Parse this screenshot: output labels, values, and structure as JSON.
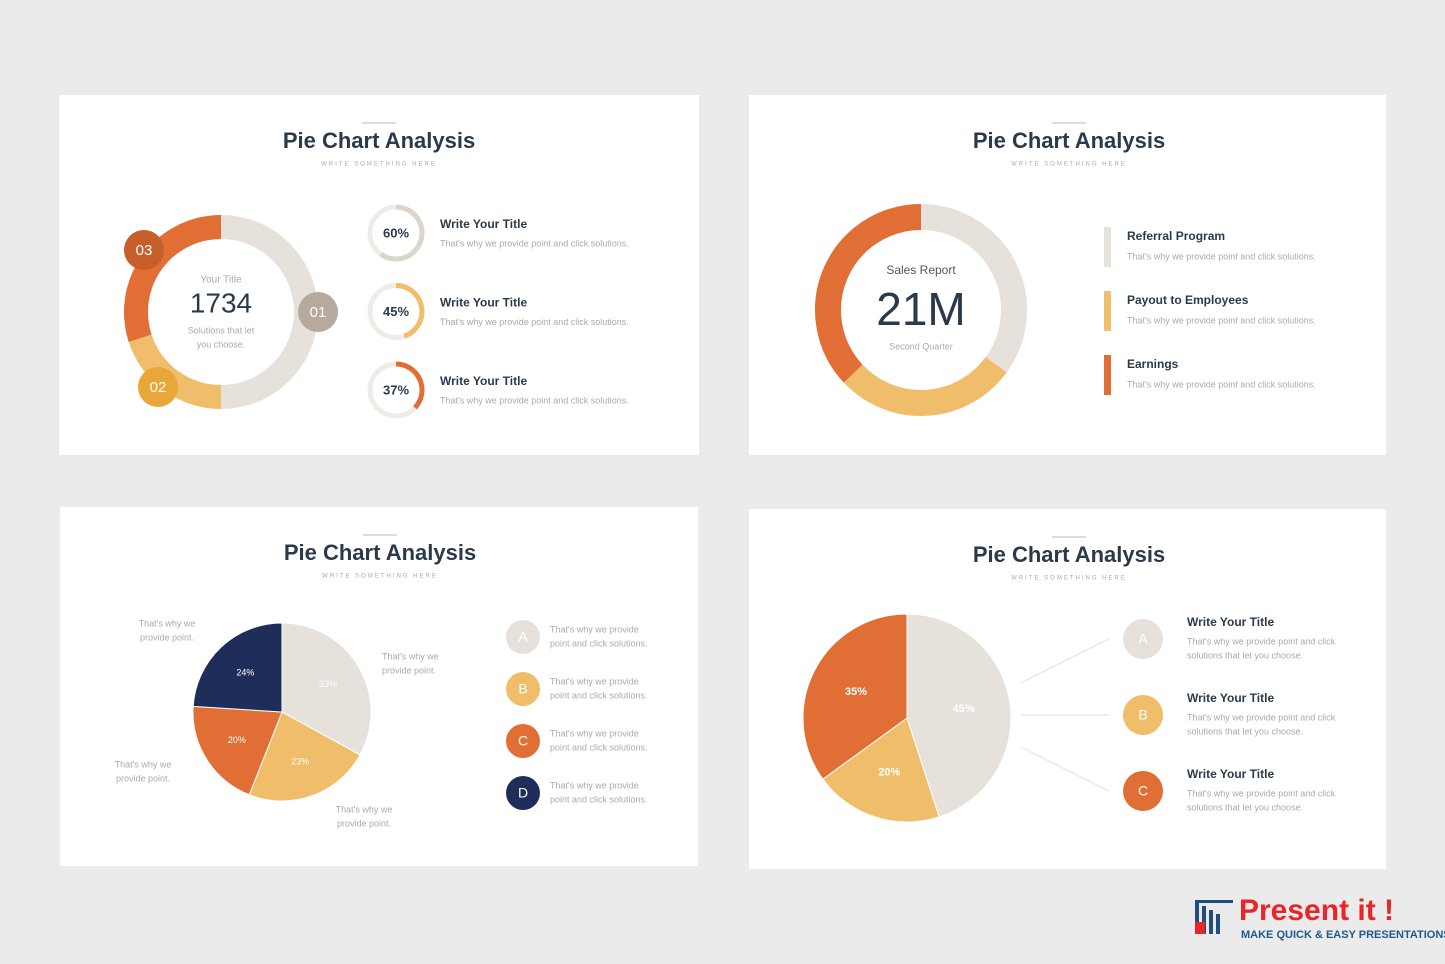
{
  "slides": [
    {
      "title": "Pie Chart Analysis",
      "subtitle": "WRITE SOMETHING HERE",
      "center": {
        "label": "Your Title",
        "value": 1734,
        "caption": [
          "Solutions that let",
          "you choose."
        ]
      },
      "segments": [
        {
          "badge": "01",
          "value": 50,
          "color": "#e6e1db"
        },
        {
          "badge": "02",
          "value": 20,
          "color": "#f0bd6a"
        },
        {
          "badge": "03",
          "value": 30,
          "color": "#e06e35"
        }
      ],
      "items": [
        {
          "value": 60,
          "value_label": "60%",
          "color": "#dcd5cb",
          "title": "Write Your Title",
          "text": "That's why we provide point and click solutions."
        },
        {
          "value": 45,
          "value_label": "45%",
          "color": "#f0bd6a",
          "title": "Write Your Title",
          "text": "That's why we provide point and click solutions."
        },
        {
          "value": 37,
          "value_label": "37%",
          "color": "#e06e35",
          "title": "Write Your Title",
          "text": "That's why we provide point and click solutions."
        }
      ]
    },
    {
      "title": "Pie Chart Analysis",
      "subtitle": "WRITE SOMETHING HERE",
      "center": {
        "label": "Sales Report",
        "value": "21M",
        "caption": "Second Quarter"
      },
      "segments": [
        {
          "name": "Referral Program",
          "value": 35,
          "color": "#e6e1db",
          "text": "That's why we provide point and click solutions."
        },
        {
          "name": "Payout to Employees",
          "value": 28,
          "color": "#f0bd6a",
          "text": "That's why we provide point and click solutions."
        },
        {
          "name": "Earnings",
          "value": 37,
          "color": "#e06e35",
          "text": "That's why we provide point and click solutions."
        }
      ]
    },
    {
      "title": "Pie Chart Analysis",
      "subtitle": "WRITE SOMETHING HERE",
      "segments": [
        {
          "value": 33,
          "label": "33%",
          "color": "#e6e1db",
          "letter": "A",
          "lines": [
            "That's why we provide",
            "point and click solutions."
          ]
        },
        {
          "value": 23,
          "label": "23%",
          "color": "#f0bd6a",
          "letter": "B",
          "lines": [
            "That's why we provide",
            "point and click solutions."
          ]
        },
        {
          "value": 20,
          "label": "20%",
          "color": "#e06e35",
          "letter": "C",
          "lines": [
            "That's why we provide",
            "point and click solutions."
          ]
        },
        {
          "value": 24,
          "label": "24%",
          "color": "#1f2d5a",
          "letter": "D",
          "lines": [
            "That's why we provide",
            "point and click solutions."
          ]
        }
      ],
      "callouts": [
        [
          "That's why we",
          "provide point."
        ],
        [
          "That's why we",
          "provide point."
        ],
        [
          "That's why we",
          "provide point."
        ],
        [
          "That's why we",
          "provide point."
        ]
      ]
    },
    {
      "title": "Pie Chart Analysis",
      "subtitle": "WRITE SOMETHING HERE",
      "segments": [
        {
          "value": 45,
          "label": "45%",
          "color": "#e6e1db",
          "letter": "A",
          "title": "Write Your Title",
          "lines": [
            "That's why we provide point and click",
            "solutions that let you choose."
          ]
        },
        {
          "value": 20,
          "label": "20%",
          "color": "#f0bd6a",
          "letter": "B",
          "title": "Write Your Title",
          "lines": [
            "That's why we provide point and click",
            "solutions that let you choose."
          ]
        },
        {
          "value": 35,
          "label": "35%",
          "color": "#e06e35",
          "letter": "C",
          "title": "Write Your Title",
          "lines": [
            "That's why we provide point and click",
            "solutions that let you choose."
          ]
        }
      ]
    }
  ],
  "logo": {
    "name": "Present it !",
    "tagline": "MAKE QUICK & EASY PRESENTATIONS"
  }
}
